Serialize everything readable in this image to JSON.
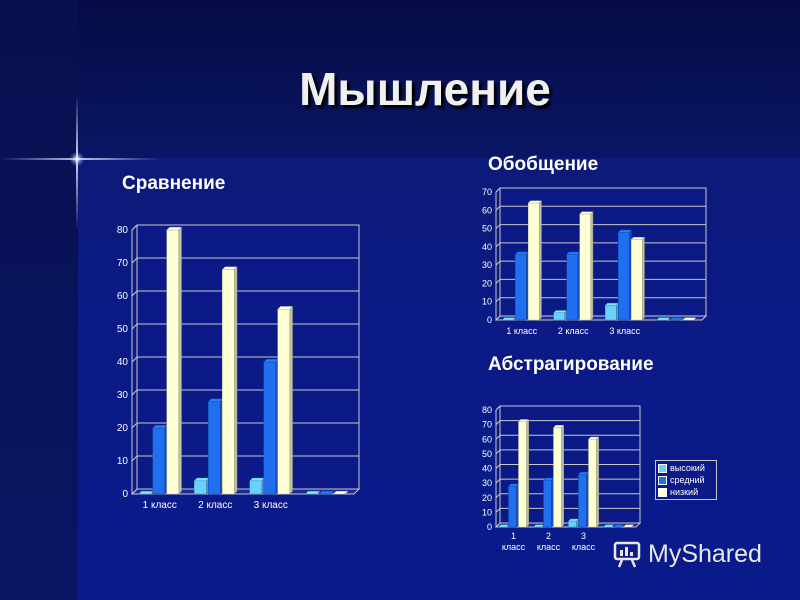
{
  "title": "Мышление",
  "legend": {
    "items": [
      {
        "label": "высокий",
        "color": "#6ad0ff"
      },
      {
        "label": "средний",
        "color": "#1f6ff0"
      },
      {
        "label": "низкий",
        "color": "#ffffd6"
      }
    ]
  },
  "watermark": {
    "text": "MyShared",
    "icon": "presentation-board-icon"
  },
  "chart_data": [
    {
      "type": "bar",
      "title": "Сравнение",
      "categories": [
        "1 класс",
        "2 класс",
        "3 класс",
        ""
      ],
      "series": [
        {
          "name": "высокий",
          "values": [
            0,
            4,
            4,
            0
          ]
        },
        {
          "name": "средний",
          "values": [
            20,
            28,
            40,
            0
          ]
        },
        {
          "name": "низкий",
          "values": [
            80,
            68,
            56,
            0
          ]
        }
      ],
      "ylim": [
        0,
        80
      ],
      "yticks": [
        0,
        10,
        20,
        30,
        40,
        50,
        60,
        70,
        80
      ],
      "grid": true
    },
    {
      "type": "bar",
      "title": "Обобщение",
      "categories": [
        "1 класс",
        "2 класс",
        "3 класс",
        ""
      ],
      "series": [
        {
          "name": "высокий",
          "values": [
            0,
            4,
            8,
            0
          ]
        },
        {
          "name": "средний",
          "values": [
            36,
            36,
            48,
            0
          ]
        },
        {
          "name": "низкий",
          "values": [
            64,
            58,
            44,
            0
          ]
        }
      ],
      "ylim": [
        0,
        70
      ],
      "yticks": [
        0,
        10,
        20,
        30,
        40,
        50,
        60,
        70
      ],
      "grid": true
    },
    {
      "type": "bar",
      "title": "Абстрагирование",
      "categories": [
        "1 класс",
        "2 класс",
        "3 класс",
        ""
      ],
      "series": [
        {
          "name": "высокий",
          "values": [
            0,
            0,
            4,
            0
          ]
        },
        {
          "name": "средний",
          "values": [
            28,
            32,
            36,
            0
          ]
        },
        {
          "name": "низкий",
          "values": [
            72,
            68,
            60,
            0
          ]
        }
      ],
      "ylim": [
        0,
        80
      ],
      "yticks": [
        0,
        10,
        20,
        30,
        40,
        50,
        60,
        70,
        80
      ],
      "grid": true,
      "legend": "right"
    }
  ]
}
